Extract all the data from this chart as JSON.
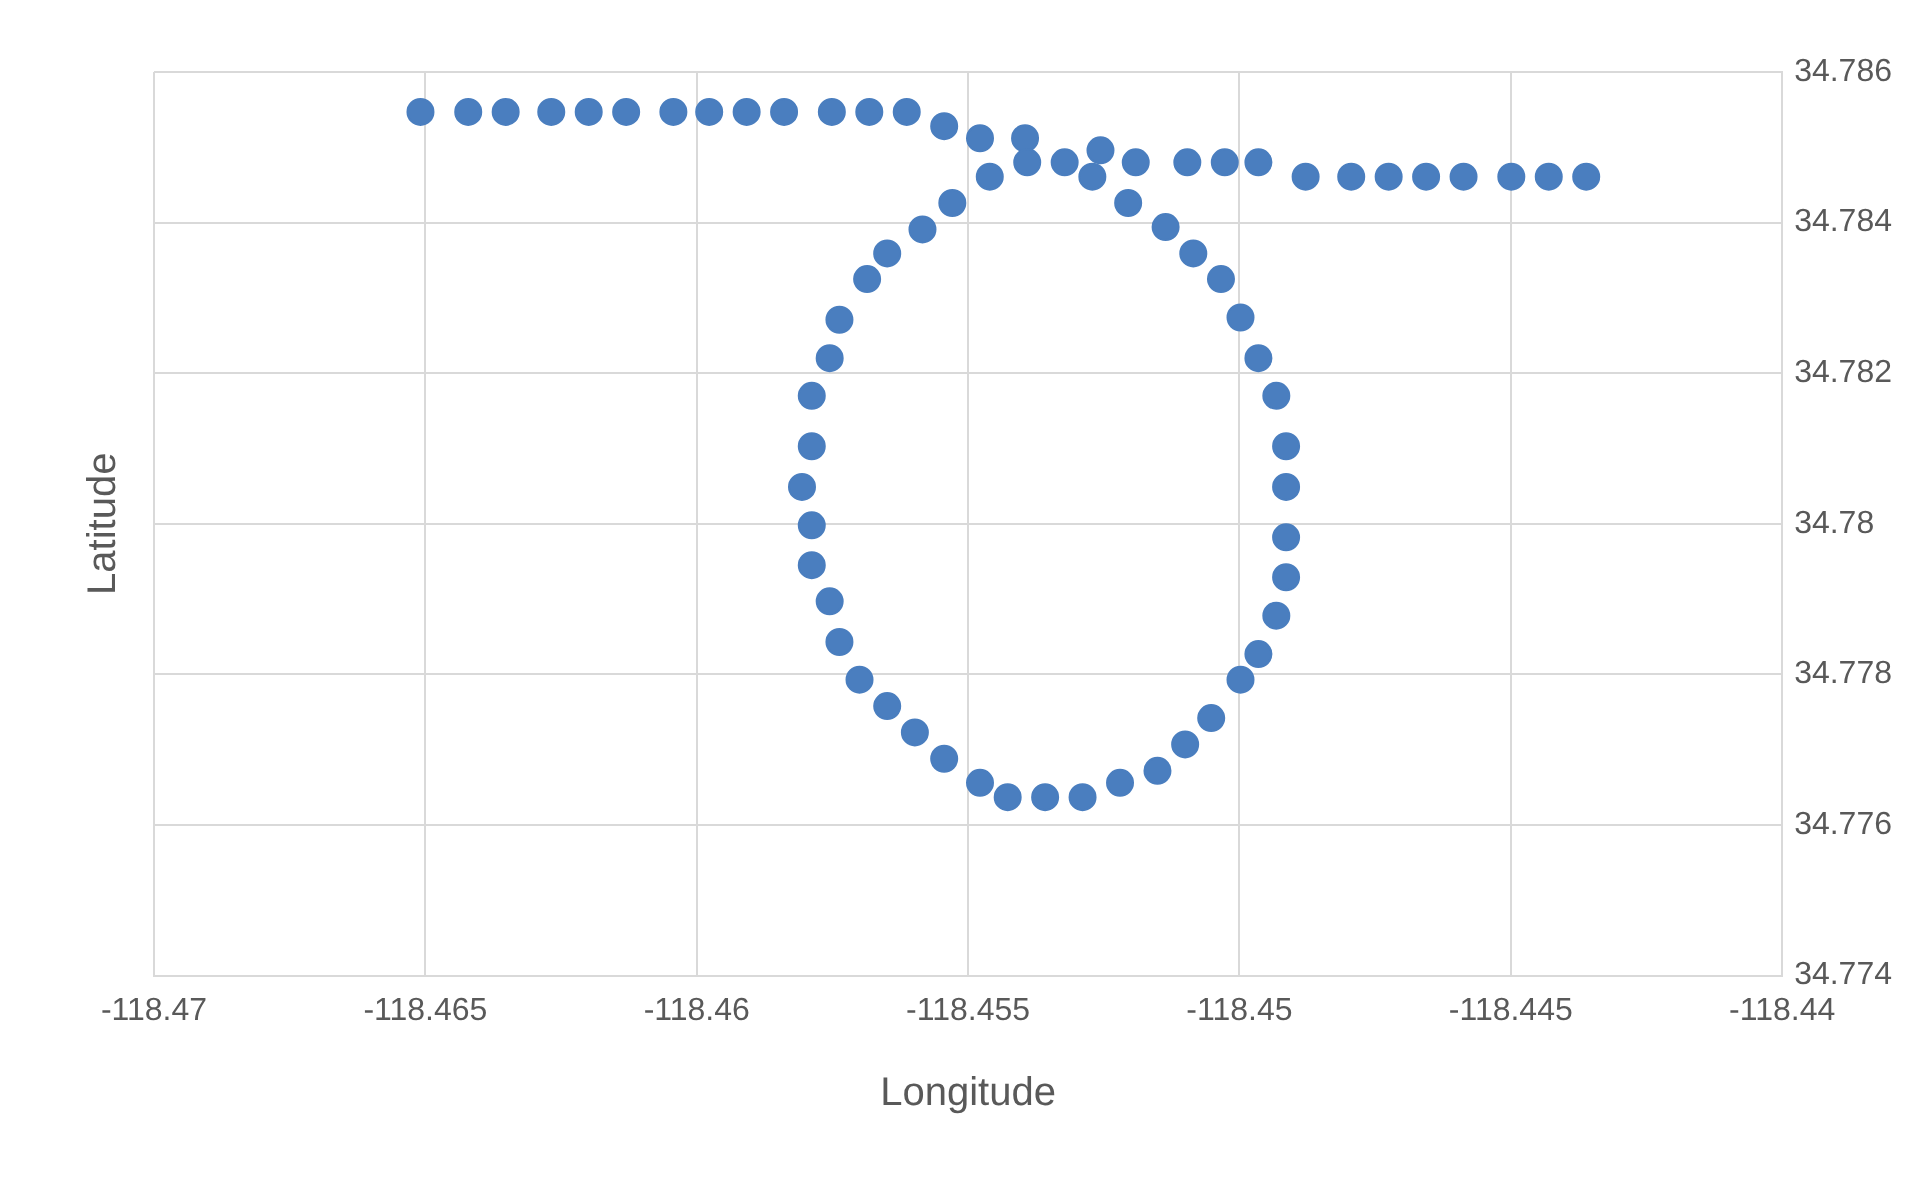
{
  "chart_data": {
    "type": "scatter",
    "xlabel": "Longitude",
    "ylabel": "Latitude",
    "marker": "circle",
    "grid": true,
    "xlim": [
      -118.47,
      -118.44
    ],
    "xticks": [
      -118.47,
      -118.465,
      -118.46,
      -118.455,
      -118.45,
      -118.445,
      -118.44
    ],
    "ylim": [
      34.774,
      34.786
    ],
    "yticks": [
      34.774,
      34.776,
      34.778,
      34.78,
      34.782,
      34.784,
      34.786
    ],
    "series": [
      {
        "color": "#4a7ebf",
        "x": [
          -118.46509,
          -118.46421,
          -118.46352,
          -118.46268,
          -118.46199,
          -118.4613,
          -118.46043,
          -118.45977,
          -118.45908,
          -118.45839,
          -118.45751,
          -118.45682,
          -118.45613,
          -118.45544,
          -118.45478,
          -118.45395,
          -118.4546,
          -118.45391,
          -118.45322,
          -118.45271,
          -118.45256,
          -118.45191,
          -118.45096,
          -118.45027,
          -118.44965,
          -118.44878,
          -118.44794,
          -118.44725,
          -118.44656,
          -118.44587,
          -118.44499,
          -118.4443,
          -118.44361,
          -118.45529,
          -118.45584,
          -118.45649,
          -118.45686,
          -118.45737,
          -118.45755,
          -118.45788,
          -118.45788,
          -118.45806,
          -118.45788,
          -118.45788,
          -118.45755,
          -118.45737,
          -118.457,
          -118.45649,
          -118.45598,
          -118.45544,
          -118.45478,
          -118.45427,
          -118.45358,
          -118.45289,
          -118.4522,
          -118.45151,
          -118.451,
          -118.45052,
          -118.44998,
          -118.44965,
          -118.44932,
          -118.44914,
          -118.44914,
          -118.44914,
          -118.44914,
          -118.44932,
          -118.44965,
          -118.44998,
          -118.45034,
          -118.45085,
          -118.45136,
          -118.45205
        ],
        "values": [
          34.78547,
          34.78547,
          34.78547,
          34.78547,
          34.78547,
          34.78547,
          34.78547,
          34.78547,
          34.78547,
          34.78547,
          34.78547,
          34.78547,
          34.78547,
          34.78528,
          34.78512,
          34.78512,
          34.78461,
          34.7848,
          34.7848,
          34.78461,
          34.78496,
          34.7848,
          34.7848,
          34.7848,
          34.7848,
          34.78461,
          34.78461,
          34.78461,
          34.78461,
          34.78461,
          34.78461,
          34.78461,
          34.78461,
          34.78426,
          34.78391,
          34.78359,
          34.78325,
          34.78271,
          34.7822,
          34.7817,
          34.78103,
          34.78049,
          34.77998,
          34.77945,
          34.77897,
          34.77843,
          34.77793,
          34.77758,
          34.77723,
          34.77688,
          34.77656,
          34.77637,
          34.77637,
          34.77637,
          34.77656,
          34.77672,
          34.77707,
          34.77742,
          34.77793,
          34.77827,
          34.77878,
          34.77929,
          34.77982,
          34.78049,
          34.78103,
          34.7817,
          34.7822,
          34.78274,
          34.78325,
          34.78359,
          34.78394,
          34.78426
        ]
      }
    ]
  }
}
